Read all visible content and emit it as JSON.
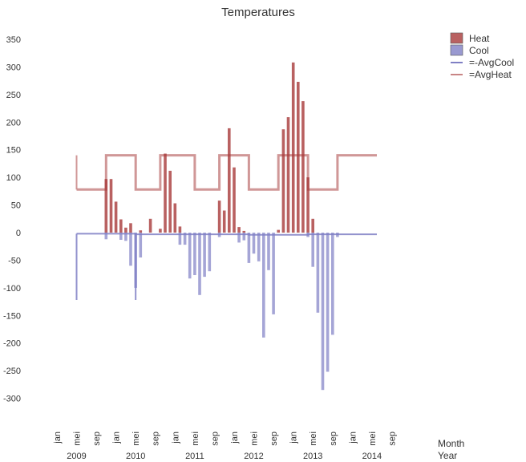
{
  "chart_data": {
    "type": "bar",
    "title": "Temperatures",
    "xlabel": "Month",
    "xlabel2": "Year",
    "ylim": [
      -350,
      370
    ],
    "yticks": [
      350,
      300,
      250,
      200,
      150,
      100,
      50,
      0,
      -50,
      -100,
      -150,
      -200,
      -250,
      -300
    ],
    "month_ticks": [
      "jan",
      "mei",
      "sep",
      "jan",
      "mei",
      "sep",
      "jan",
      "mei",
      "sep",
      "jan",
      "mei",
      "sep",
      "jan",
      "mei",
      "sep",
      "jan",
      "mei",
      "sep"
    ],
    "years": [
      "2009",
      "2010",
      "2011",
      "2012",
      "2013",
      "2014"
    ],
    "legend": [
      {
        "label": "Heat",
        "kind": "box",
        "color": "#a83a3a"
      },
      {
        "label": "Cool",
        "kind": "box",
        "color": "#7f7fc4"
      },
      {
        "label": "=-AvgCool",
        "kind": "line",
        "color": "#7f7fc4"
      },
      {
        "label": "=AvgHeat",
        "kind": "line",
        "color": "#c88585"
      }
    ],
    "series": [
      {
        "name": "Heat",
        "start_month": "2009-11",
        "values": [
          97,
          97,
          56,
          24,
          9,
          17,
          0,
          4,
          0,
          25,
          0,
          7,
          143,
          112,
          53,
          11,
          0,
          0,
          0,
          0,
          0,
          0,
          0,
          58,
          40,
          189,
          118,
          10,
          3,
          0,
          0,
          0,
          0,
          0,
          0,
          5,
          187,
          209,
          308,
          273,
          238,
          100,
          25,
          0,
          0,
          0,
          0,
          0
        ]
      },
      {
        "name": "Cool",
        "start_month": "2009-11",
        "values": [
          -12,
          0,
          0,
          -13,
          -15,
          -60,
          -100,
          -45,
          0,
          0,
          0,
          0,
          0,
          0,
          0,
          -22,
          -22,
          -83,
          -77,
          -113,
          -80,
          -70,
          0,
          -8,
          0,
          0,
          0,
          -18,
          -14,
          -55,
          -38,
          -52,
          -190,
          -68,
          -148,
          0,
          0,
          0,
          0,
          0,
          0,
          -8,
          -62,
          -145,
          -285,
          -252,
          -185,
          -8
        ]
      },
      {
        "name": "=-AvgCool",
        "steps": [
          {
            "from": "2009-05",
            "to": "2010-05",
            "value": -2
          },
          {
            "from": "2010-05",
            "to": "2012-04",
            "value": -3
          },
          {
            "from": "2012-04",
            "to": "2013-04",
            "value": -4
          },
          {
            "from": "2013-04",
            "to": "2014-06",
            "value": -3
          }
        ],
        "spikes": [
          {
            "at": "2009-05",
            "value": -122
          },
          {
            "at": "2010-05",
            "value": -122
          }
        ]
      },
      {
        "name": "=AvgHeat",
        "steps": [
          {
            "from": "2009-05",
            "to": "2009-11",
            "value": 78
          },
          {
            "from": "2009-11",
            "to": "2010-05",
            "value": 140
          },
          {
            "from": "2010-05",
            "to": "2010-10",
            "value": 78
          },
          {
            "from": "2010-10",
            "to": "2011-05",
            "value": 140
          },
          {
            "from": "2011-05",
            "to": "2011-10",
            "value": 78
          },
          {
            "from": "2011-10",
            "to": "2012-04",
            "value": 140
          },
          {
            "from": "2012-04",
            "to": "2012-10",
            "value": 78
          },
          {
            "from": "2012-10",
            "to": "2013-04",
            "value": 140
          },
          {
            "from": "2013-04",
            "to": "2013-10",
            "value": 78
          },
          {
            "from": "2013-10",
            "to": "2014-06",
            "value": 140
          }
        ],
        "spikes": [
          {
            "at": "2009-05",
            "value": 140
          }
        ]
      }
    ]
  }
}
